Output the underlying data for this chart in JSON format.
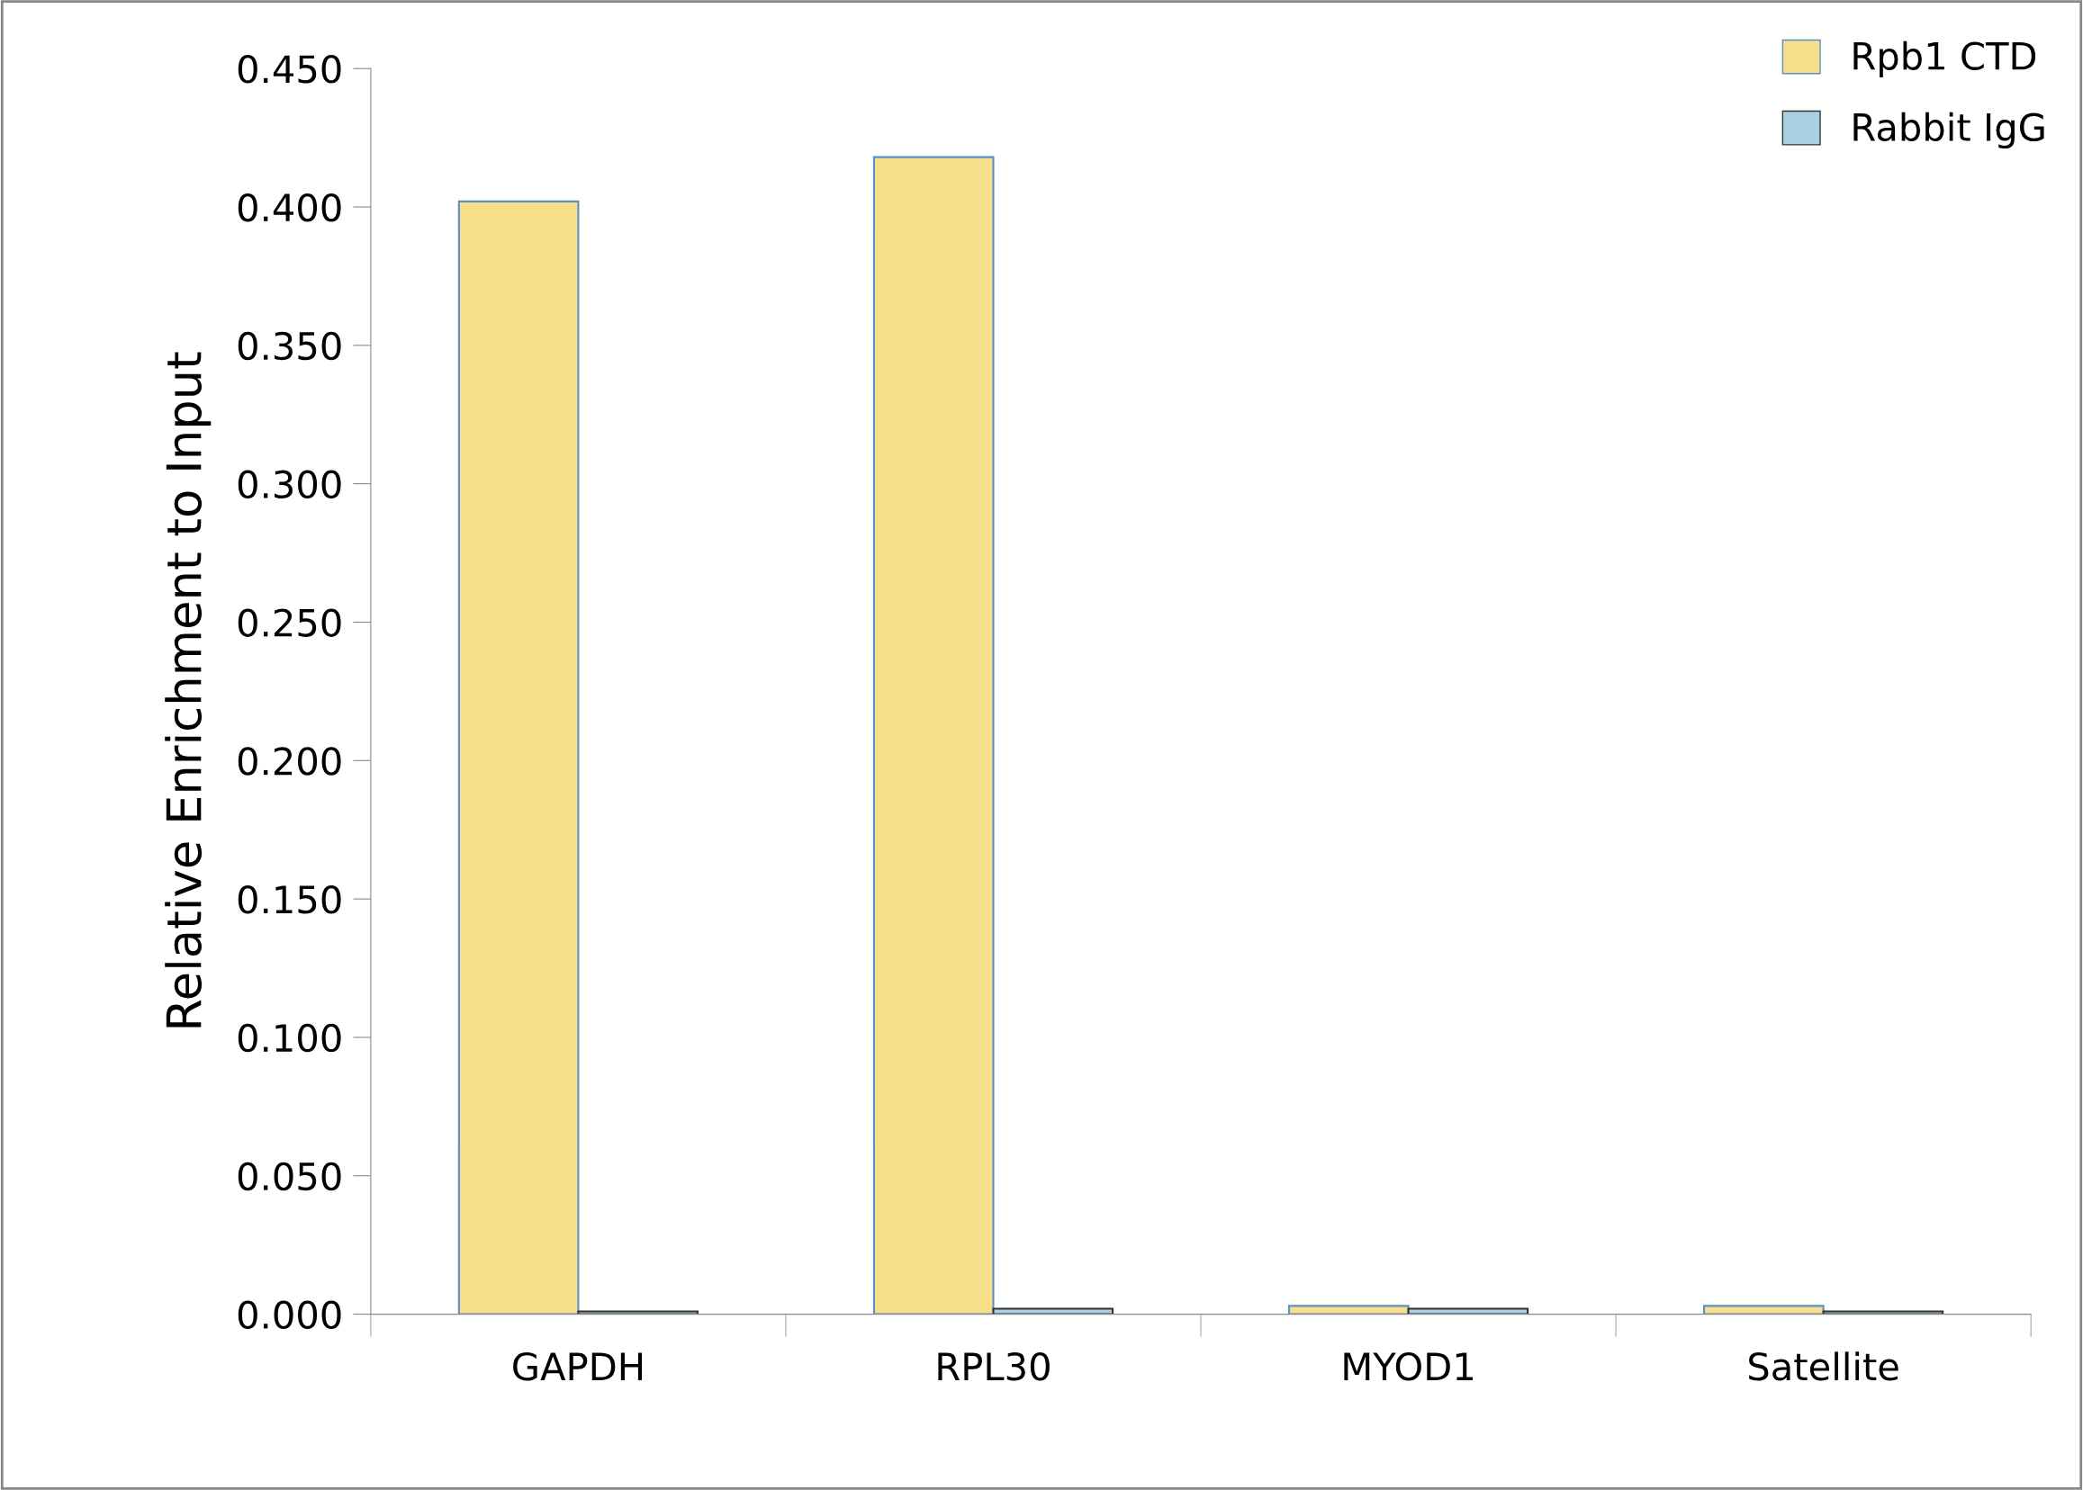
{
  "chart_data": {
    "type": "bar",
    "ylabel": "Relative Enrichment to Input",
    "categories": [
      "GAPDH",
      "RPL30",
      "MYOD1",
      "Satellite"
    ],
    "series": [
      {
        "name": "Rpb1 CTD",
        "color": "#f7de8a",
        "values": [
          0.402,
          0.418,
          0.003,
          0.003
        ]
      },
      {
        "name": "Rabbit IgG",
        "color": "#a9d1e4",
        "values": [
          0.001,
          0.002,
          0.002,
          0.001
        ]
      }
    ],
    "ylim": [
      0,
      0.45
    ],
    "yticks": [
      {
        "value": 0,
        "label": "0.000"
      },
      {
        "value": 0.05,
        "label": "0.050"
      },
      {
        "value": 0.1,
        "label": "0.100"
      },
      {
        "value": 0.15,
        "label": "0.150"
      },
      {
        "value": 0.2,
        "label": "0.200"
      },
      {
        "value": 0.25,
        "label": "0.250"
      },
      {
        "value": 0.3,
        "label": "0.300"
      },
      {
        "value": 0.35,
        "label": "0.350"
      },
      {
        "value": 0.4,
        "label": "0.400"
      },
      {
        "value": 0.45,
        "label": "0.450"
      }
    ],
    "grid": false,
    "legend": "top right"
  }
}
